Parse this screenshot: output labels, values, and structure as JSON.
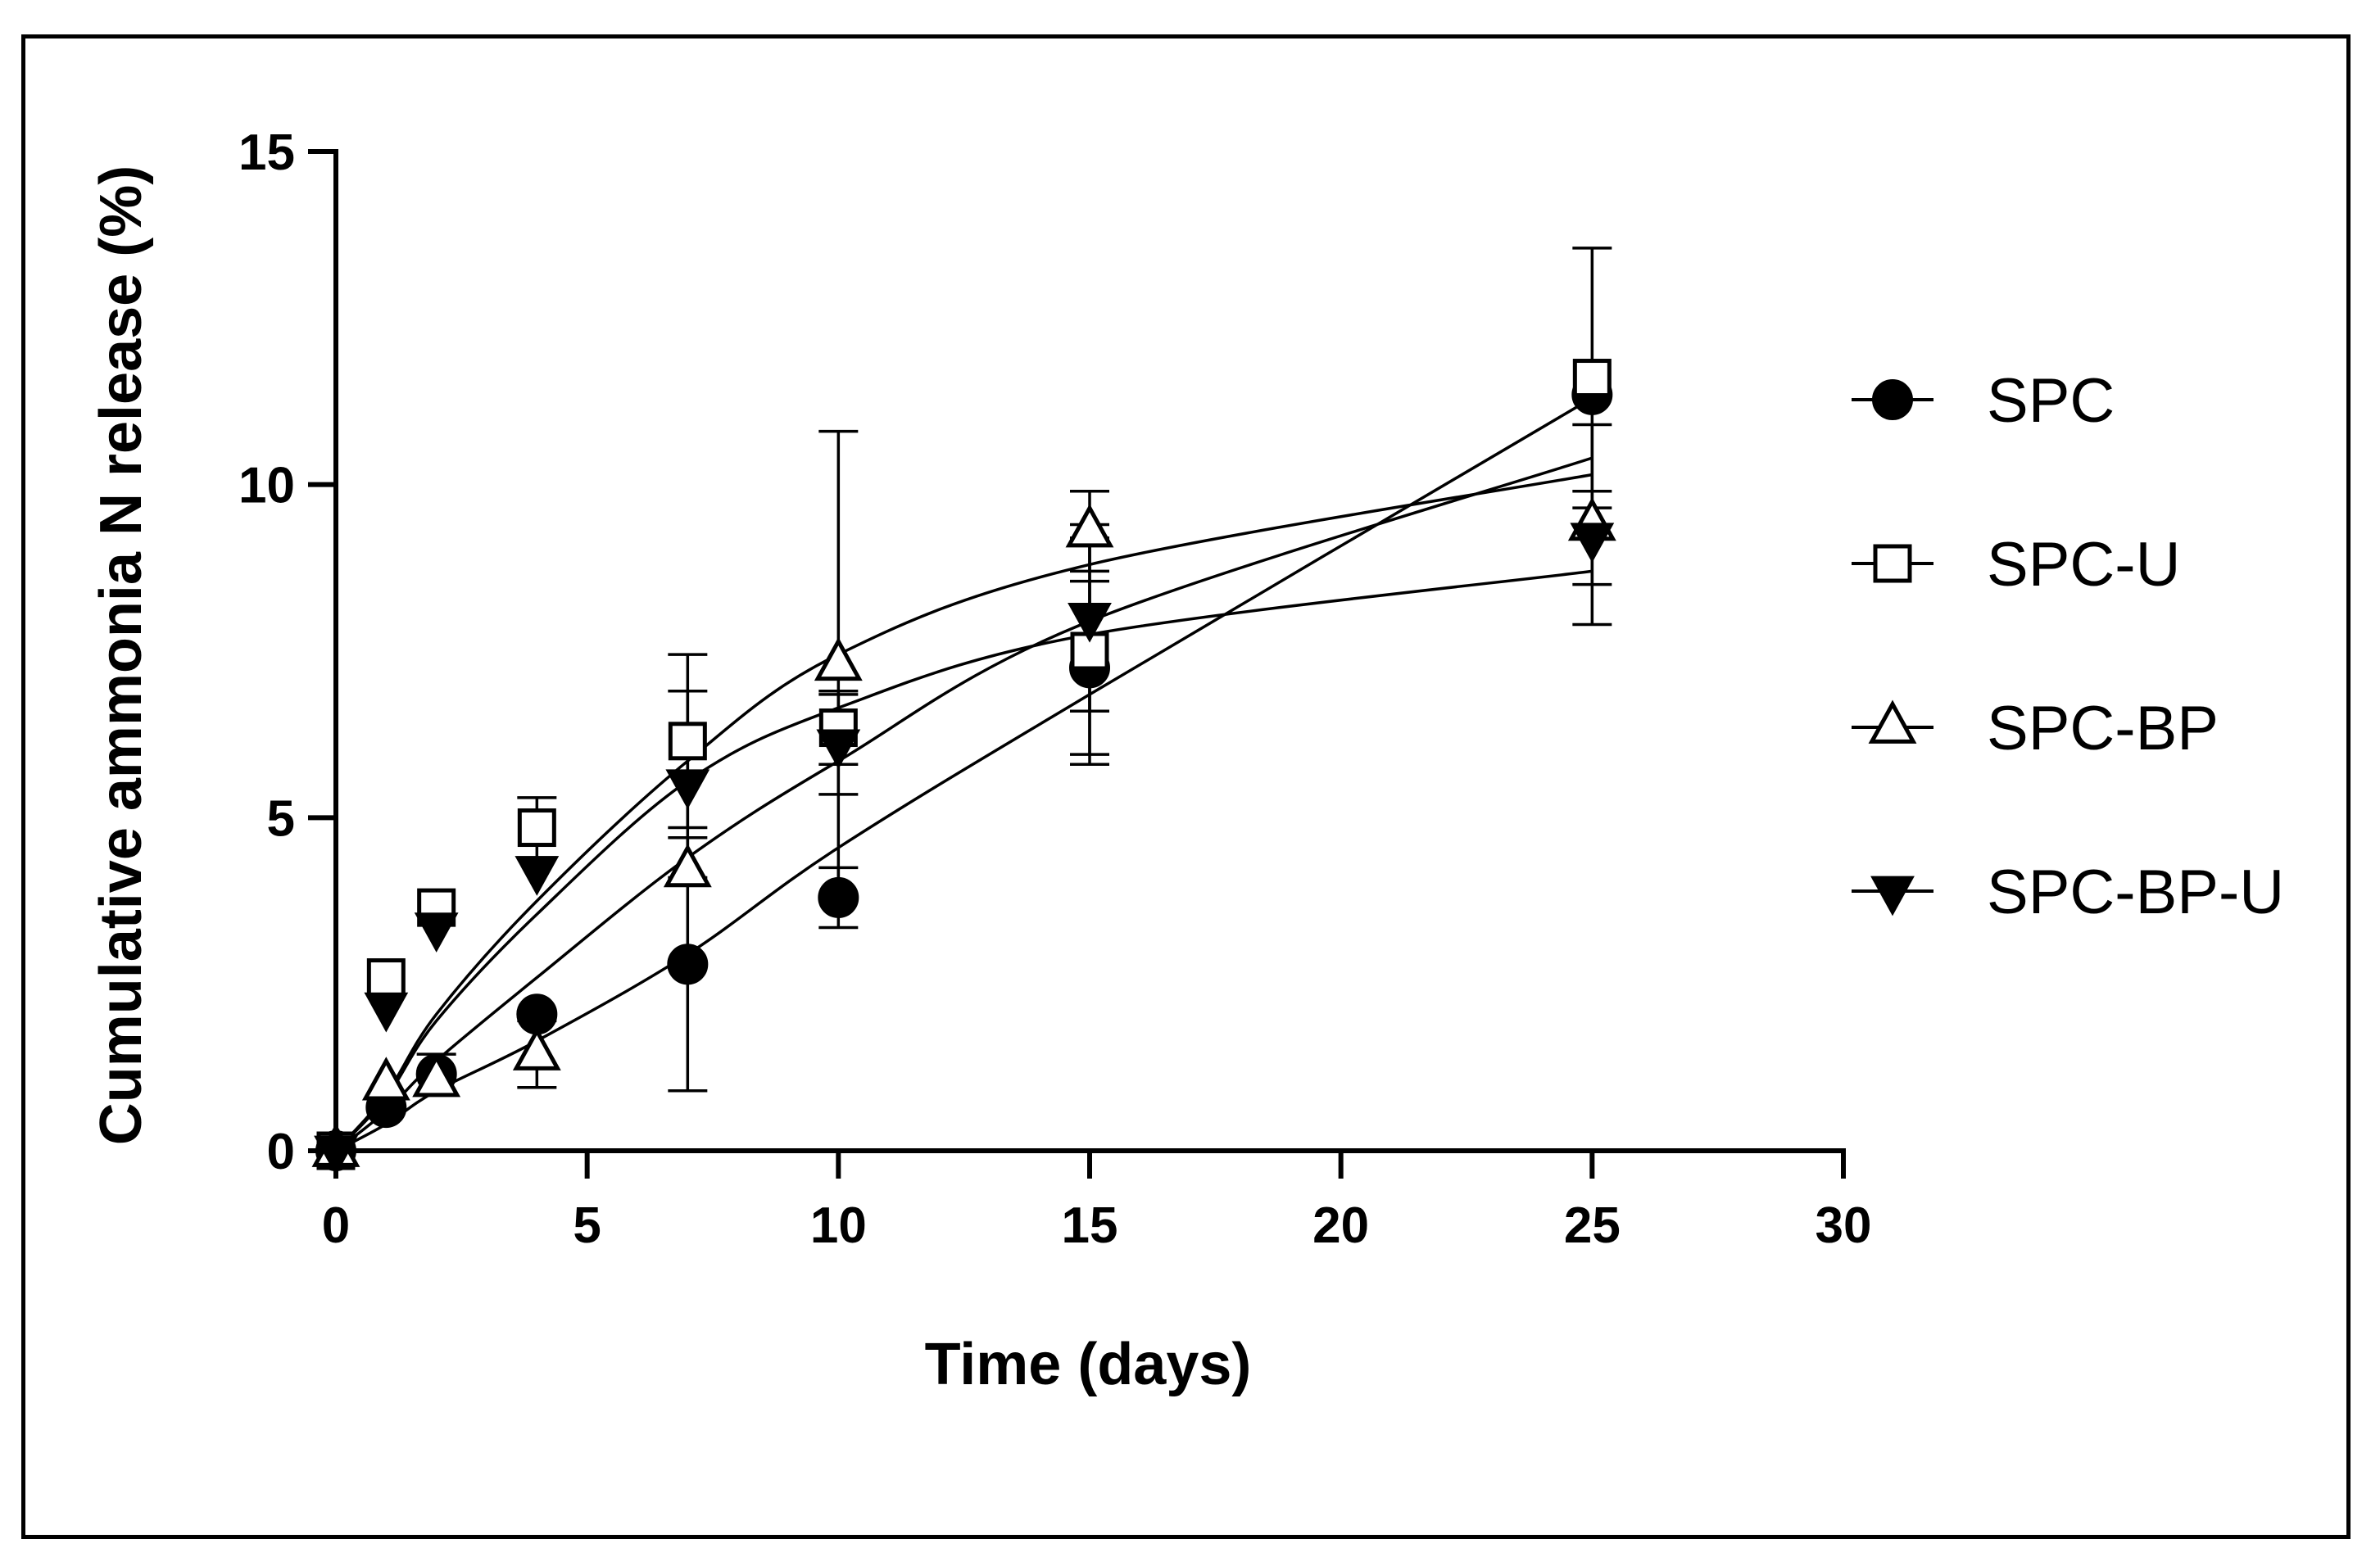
{
  "chart_data": {
    "type": "scatter",
    "title": "",
    "xlabel": "Time (days)",
    "ylabel": "Cumulative ammonia N release (%)",
    "xlim": [
      0,
      30
    ],
    "ylim": [
      0,
      15
    ],
    "xticks": [
      0,
      5,
      10,
      15,
      20,
      25,
      30
    ],
    "yticks": [
      0,
      5,
      10,
      15
    ],
    "xtick_labels": [
      "0",
      "5",
      "10",
      "15",
      "20",
      "25",
      "30"
    ],
    "ytick_labels": [
      "0",
      "5",
      "10",
      "15"
    ],
    "grid": false,
    "legend_position": "right",
    "series": [
      {
        "name": "SPC",
        "marker": "filled-circle",
        "x": [
          0,
          1,
          2,
          4,
          7,
          10,
          15,
          25
        ],
        "y": [
          0,
          0.65,
          1.15,
          2.05,
          2.8,
          3.8,
          7.25,
          11.35
        ],
        "err": [
          0,
          0,
          0.3,
          0,
          1.9,
          0.45,
          1.3,
          0
        ],
        "fit": [
          0,
          0.4,
          0.9,
          1.65,
          2.95,
          4.55,
          6.85,
          11.3
        ]
      },
      {
        "name": "SPC-U",
        "marker": "open-square",
        "x": [
          0,
          1,
          2,
          4,
          7,
          10,
          15,
          25
        ],
        "y": [
          0,
          2.6,
          3.65,
          4.85,
          6.15,
          6.35,
          7.5,
          11.6
        ],
        "err": [
          0,
          0,
          0,
          0.45,
          1.3,
          0.55,
          1.7,
          1.95
        ],
        "fit": [
          0,
          0.8,
          1.95,
          3.55,
          5.55,
          6.65,
          7.75,
          8.7
        ]
      },
      {
        "name": "SPC-BP",
        "marker": "open-triangle",
        "x": [
          0,
          1,
          2,
          4,
          7,
          10,
          15,
          25
        ],
        "y": [
          0,
          1.0,
          1.05,
          1.45,
          4.2,
          7.3,
          9.3,
          9.4
        ],
        "err": [
          0,
          0,
          0,
          0.5,
          0,
          3.5,
          0.6,
          1.5
        ],
        "fit": [
          0,
          0.6,
          1.35,
          2.6,
          4.4,
          5.85,
          7.95,
          10.4
        ]
      },
      {
        "name": "SPC-BP-U",
        "marker": "filled-triangle-down",
        "x": [
          0,
          1,
          2,
          4,
          7,
          10,
          15,
          25
        ],
        "y": [
          0,
          2.15,
          3.35,
          4.2,
          5.5,
          6.1,
          8.0,
          9.2
        ],
        "err": [
          0,
          0,
          0,
          0,
          1.4,
          0.75,
          1.4,
          0.7
        ],
        "fit": [
          0,
          0.85,
          2.05,
          3.75,
          5.85,
          7.45,
          8.8,
          10.15
        ]
      }
    ]
  }
}
